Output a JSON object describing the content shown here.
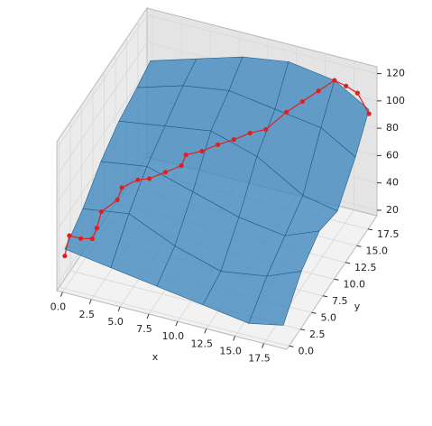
{
  "chart_data": {
    "type": "surface3d",
    "xlabel": "x",
    "ylabel": "y",
    "xlim": [
      -0.5,
      19.5
    ],
    "ylim": [
      -0.5,
      19.5
    ],
    "zlim": [
      16,
      125
    ],
    "xticks": [
      {
        "value": 0,
        "label": "0.0"
      },
      {
        "value": 2.5,
        "label": "2.5"
      },
      {
        "value": 5,
        "label": "5.0"
      },
      {
        "value": 7.5,
        "label": "7.5"
      },
      {
        "value": 10,
        "label": "10.0"
      },
      {
        "value": 12.5,
        "label": "12.5"
      },
      {
        "value": 15,
        "label": "15.0"
      },
      {
        "value": 17.5,
        "label": "17.5"
      }
    ],
    "yticks": [
      {
        "value": 0,
        "label": "0.0"
      },
      {
        "value": 2.5,
        "label": "2.5"
      },
      {
        "value": 5,
        "label": "5.0"
      },
      {
        "value": 7.5,
        "label": "7.5"
      },
      {
        "value": 10,
        "label": "10.0"
      },
      {
        "value": 12.5,
        "label": "12.5"
      },
      {
        "value": 15,
        "label": "15.0"
      },
      {
        "value": 17.5,
        "label": "17.5"
      }
    ],
    "zticks": [
      20,
      40,
      60,
      80,
      100,
      120
    ],
    "surface": {
      "color": "#3f86bf",
      "x": [
        0,
        4,
        8,
        12,
        16,
        19
      ],
      "y": [
        0,
        4,
        8,
        12,
        16,
        19
      ],
      "z": [
        [
          45,
          40,
          35,
          30,
          25,
          30
        ],
        [
          55,
          60,
          45,
          35,
          40,
          50
        ],
        [
          70,
          75,
          65,
          55,
          50,
          60
        ],
        [
          80,
          85,
          90,
          80,
          60,
          55
        ],
        [
          85,
          95,
          100,
          95,
          90,
          75
        ],
        [
          90,
          100,
          110,
          115,
          110,
          95
        ]
      ]
    },
    "series": [
      {
        "color": "#e02020",
        "x": [
          0,
          0,
          1,
          2,
          2,
          2,
          3,
          3,
          4,
          5,
          6,
          7,
          7,
          8,
          9,
          10,
          11,
          12,
          13,
          14,
          15,
          16,
          17,
          18,
          19
        ],
        "y": [
          0,
          1,
          1,
          1,
          2,
          3,
          4,
          5,
          6,
          6,
          7,
          8,
          9,
          10,
          11,
          12,
          13,
          14,
          16,
          17,
          18,
          19,
          19,
          19,
          19
        ],
        "z": [
          40,
          50,
          50,
          52,
          55,
          62,
          68,
          72,
          75,
          78,
          80,
          82,
          85,
          85,
          87,
          88,
          90,
          90,
          95,
          100,
          105,
          110,
          108,
          105,
          92
        ]
      }
    ]
  }
}
